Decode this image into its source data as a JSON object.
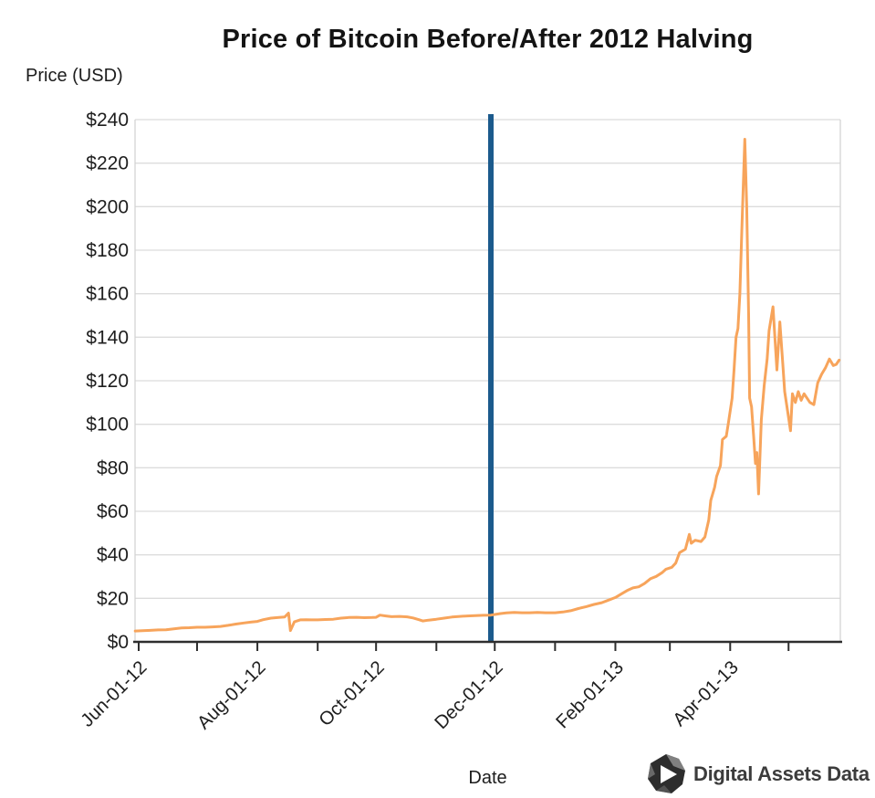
{
  "title": "Price of Bitcoin Before/After 2012 Halving",
  "y_axis_title": "Price (USD)",
  "x_axis_title": "Date",
  "branding": {
    "name": "Digital Assets Data"
  },
  "colors": {
    "price_line": "#F7A45B",
    "halving_line": "#1B5A8C",
    "grid": "#DCDCDC",
    "plot_border": "#D4D4D4",
    "axis": "#2E2E2E",
    "tick_text": "#1E1E1E",
    "logo_icon": "#2D2D2D",
    "logo_facet": "#8F8F8F",
    "logo_text": "#3C3C3C"
  },
  "chart_data": {
    "type": "line",
    "title": "Price of Bitcoin Before/After 2012 Halving",
    "xlabel": "Date",
    "ylabel": "Price (USD)",
    "grid": true,
    "legend": "none",
    "x_unit": "days since Jun-01-12",
    "x_range_days": [
      -2,
      361
    ],
    "ylim": [
      0,
      240
    ],
    "y_tick_interval": 20,
    "y_tick_prefix": "$",
    "x_axis": {
      "major_ticks": [
        {
          "day": 0,
          "label": "Jun-01-12"
        },
        {
          "day": 61,
          "label": "Aug-01-12"
        },
        {
          "day": 122,
          "label": "Oct-01-12"
        },
        {
          "day": 183,
          "label": "Dec-01-12"
        },
        {
          "day": 245,
          "label": "Feb-01-13"
        },
        {
          "day": 304,
          "label": "Apr-01-13"
        }
      ],
      "minor_tick_days": [
        30,
        92,
        153,
        214,
        273,
        334
      ]
    },
    "annotations": [
      {
        "type": "vline",
        "name": "2012-halving-marker",
        "x_day": 181
      }
    ],
    "series": [
      {
        "name": "Bitcoin price",
        "points": [
          [
            -1.8,
            5.0
          ],
          [
            2,
            5.1
          ],
          [
            6,
            5.3
          ],
          [
            10,
            5.5
          ],
          [
            14,
            5.6
          ],
          [
            18,
            6.0
          ],
          [
            22,
            6.4
          ],
          [
            26,
            6.5
          ],
          [
            30,
            6.7
          ],
          [
            34,
            6.7
          ],
          [
            38,
            6.9
          ],
          [
            42,
            7.1
          ],
          [
            46,
            7.6
          ],
          [
            50,
            8.2
          ],
          [
            54,
            8.7
          ],
          [
            58,
            9.1
          ],
          [
            61,
            9.4
          ],
          [
            64,
            10.2
          ],
          [
            68,
            10.9
          ],
          [
            72,
            11.2
          ],
          [
            75,
            11.4
          ],
          [
            77,
            13.2
          ],
          [
            78,
            5.2
          ],
          [
            80,
            9.2
          ],
          [
            83,
            10.1
          ],
          [
            86,
            10.2
          ],
          [
            89,
            10.1
          ],
          [
            92,
            10.1
          ],
          [
            96,
            10.3
          ],
          [
            100,
            10.4
          ],
          [
            104,
            10.9
          ],
          [
            108,
            11.2
          ],
          [
            112,
            11.3
          ],
          [
            116,
            11.1
          ],
          [
            120,
            11.2
          ],
          [
            122,
            11.3
          ],
          [
            124,
            12.3
          ],
          [
            127,
            11.9
          ],
          [
            130,
            11.6
          ],
          [
            134,
            11.7
          ],
          [
            138,
            11.5
          ],
          [
            141,
            11.0
          ],
          [
            144,
            10.2
          ],
          [
            146,
            9.6
          ],
          [
            149,
            10.0
          ],
          [
            153,
            10.4
          ],
          [
            157,
            10.9
          ],
          [
            161,
            11.4
          ],
          [
            165,
            11.7
          ],
          [
            169,
            11.9
          ],
          [
            173,
            12.1
          ],
          [
            177,
            12.2
          ],
          [
            181,
            12.3
          ],
          [
            183,
            12.6
          ],
          [
            186,
            13.0
          ],
          [
            189,
            13.3
          ],
          [
            193,
            13.5
          ],
          [
            197,
            13.4
          ],
          [
            201,
            13.4
          ],
          [
            205,
            13.5
          ],
          [
            209,
            13.4
          ],
          [
            214,
            13.4
          ],
          [
            218,
            13.7
          ],
          [
            222,
            14.3
          ],
          [
            226,
            15.3
          ],
          [
            230,
            16.2
          ],
          [
            234,
            17.2
          ],
          [
            238,
            18.0
          ],
          [
            241,
            19.0
          ],
          [
            245,
            20.4
          ],
          [
            248,
            22.0
          ],
          [
            251,
            23.6
          ],
          [
            254,
            24.8
          ],
          [
            257,
            25.3
          ],
          [
            260,
            26.8
          ],
          [
            263,
            29.0
          ],
          [
            266,
            30.1
          ],
          [
            269,
            31.8
          ],
          [
            271,
            33.4
          ],
          [
            274,
            34.3
          ],
          [
            276,
            36.2
          ],
          [
            278,
            41.0
          ],
          [
            281,
            42.6
          ],
          [
            283,
            49.4
          ],
          [
            284,
            45.3
          ],
          [
            286,
            46.7
          ],
          [
            289,
            46.1
          ],
          [
            291,
            48.2
          ],
          [
            293,
            56.0
          ],
          [
            294,
            65.0
          ],
          [
            296,
            71.0
          ],
          [
            297,
            76.0
          ],
          [
            299,
            81.0
          ],
          [
            300,
            93.0
          ],
          [
            302,
            94.5
          ],
          [
            303,
            100.0
          ],
          [
            305,
            112.0
          ],
          [
            306,
            125.0
          ],
          [
            307,
            140.0
          ],
          [
            308,
            144.0
          ],
          [
            309,
            160.0
          ],
          [
            310,
            190.0
          ],
          [
            311.5,
            231.0
          ],
          [
            312.5,
            200.0
          ],
          [
            313.5,
            150.0
          ],
          [
            314,
            112.0
          ],
          [
            315,
            108.0
          ],
          [
            316,
            95.0
          ],
          [
            317,
            82.0
          ],
          [
            317.7,
            87.0
          ],
          [
            318.6,
            68.0
          ],
          [
            320,
            102.0
          ],
          [
            321.5,
            118.0
          ],
          [
            323,
            130.0
          ],
          [
            324,
            143.0
          ],
          [
            326,
            154.0
          ],
          [
            328,
            125.0
          ],
          [
            329.5,
            147.0
          ],
          [
            331,
            128.0
          ],
          [
            332,
            115.0
          ],
          [
            334,
            103.0
          ],
          [
            335,
            97.0
          ],
          [
            336,
            114.0
          ],
          [
            337.5,
            110.0
          ],
          [
            339,
            115.0
          ],
          [
            340.5,
            111.0
          ],
          [
            342,
            114.0
          ],
          [
            343.5,
            112.0
          ],
          [
            345,
            110.0
          ],
          [
            347,
            109.0
          ],
          [
            349,
            119.0
          ],
          [
            351,
            123.0
          ],
          [
            353,
            126.0
          ],
          [
            355,
            130.0
          ],
          [
            357,
            127.0
          ],
          [
            358.5,
            127.5
          ],
          [
            360,
            129.5
          ]
        ]
      }
    ]
  }
}
